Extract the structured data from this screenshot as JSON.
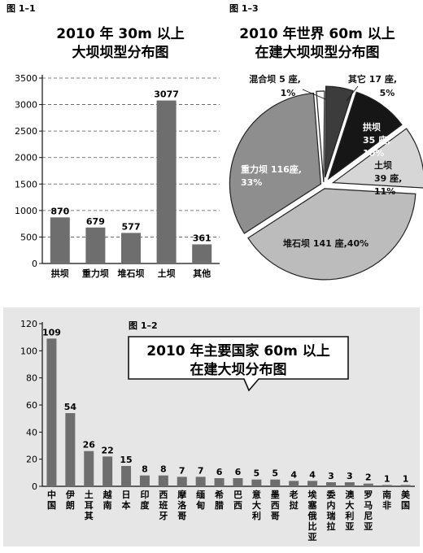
{
  "figures": {
    "fig1": {
      "label": "图 1–1",
      "title_line1": "2010 年 30m 以上",
      "title_line2": "大坝坝型分布图"
    },
    "fig3": {
      "label": "图 1–3",
      "title_line1": "2010 年世界 60m 以上",
      "title_line2": "在建大坝坝型分布图"
    },
    "fig2": {
      "label": "图 1–2",
      "title_line1": "2010 年主要国家 60m 以上",
      "title_line2": "在建大坝分布图"
    }
  },
  "colors": {
    "bar": "#6e6e6e",
    "bottom_panel_bg": "#e6e6e6",
    "pie_mixed": "#ffffff",
    "pie_other": "#3c3c3c",
    "pie_arch": "#161616",
    "pie_earth": "#d6d6d6",
    "pie_rockfill": "#bcbcbc",
    "pie_gravity": "#8e8e8e"
  },
  "chart_data": [
    {
      "id": "fig1",
      "type": "bar",
      "categories": [
        "拱坝",
        "重力坝",
        "堆石坝",
        "土坝",
        "其他"
      ],
      "values": [
        870,
        679,
        577,
        3077,
        361
      ],
      "value_labels": [
        "870",
        "679",
        "577",
        "3077",
        "361"
      ],
      "ylim": [
        0,
        3500
      ],
      "yticks": [
        0,
        500,
        1000,
        1500,
        2000,
        2500,
        3000,
        3500
      ],
      "ytick_labels": [
        "0",
        "500",
        "1000",
        "1500",
        "2000",
        "2500",
        "3000",
        "3500"
      ],
      "grid": true,
      "title": "2010 年 30m 以上 大坝坝型分布图"
    },
    {
      "id": "fig3",
      "type": "pie",
      "slices": [
        {
          "name": "混合坝",
          "value": 5,
          "percent": 1,
          "label_line1": "混合坝 5 座,",
          "label_line2": "1%"
        },
        {
          "name": "其它",
          "value": 17,
          "percent": 5,
          "label_line1": "其它 17 座,",
          "label_line2": "5%"
        },
        {
          "name": "拱坝",
          "value": 35,
          "percent": 10,
          "label_line1": "拱坝",
          "label_line2": "35 座,",
          "label_line3": "10%"
        },
        {
          "name": "土坝",
          "value": 39,
          "percent": 11,
          "label_line1": "土坝",
          "label_line2": "39 座,",
          "label_line3": "11%"
        },
        {
          "name": "堆石坝",
          "value": 141,
          "percent": 40,
          "label_line1": "堆石坝 141 座,40%"
        },
        {
          "name": "重力坝",
          "value": 116,
          "percent": 33,
          "label_line1": "重力坝 116座,",
          "label_line2": "33%"
        }
      ],
      "title": "2010 年世界 60m 以上 在建大坝坝型分布图"
    },
    {
      "id": "fig2",
      "type": "bar",
      "categories": [
        "中国",
        "伊朗",
        "土耳其",
        "越南",
        "日本",
        "印度",
        "西班牙",
        "摩洛哥",
        "缅甸",
        "希腊",
        "巴西",
        "意大利",
        "墨西哥",
        "老挝",
        "埃塞俄比亚",
        "委内瑞拉",
        "澳大利亚",
        "罗马尼亚",
        "南非",
        "美国"
      ],
      "values": [
        109,
        54,
        26,
        22,
        15,
        8,
        8,
        7,
        7,
        6,
        6,
        5,
        5,
        4,
        4,
        3,
        3,
        2,
        1,
        1
      ],
      "value_labels": [
        "109",
        "54",
        "26",
        "22",
        "15",
        "8",
        "8",
        "7",
        "7",
        "6",
        "6",
        "5",
        "5",
        "4",
        "4",
        "3",
        "3",
        "2",
        "1",
        "1"
      ],
      "ylim": [
        0,
        120
      ],
      "yticks": [
        0,
        20,
        40,
        60,
        80,
        100,
        120
      ],
      "ytick_labels": [
        "0",
        "20",
        "40",
        "60",
        "80",
        "100",
        "120"
      ],
      "grid": false,
      "title": "2010 年主要国家 60m 以上 在建大坝分布图"
    }
  ]
}
